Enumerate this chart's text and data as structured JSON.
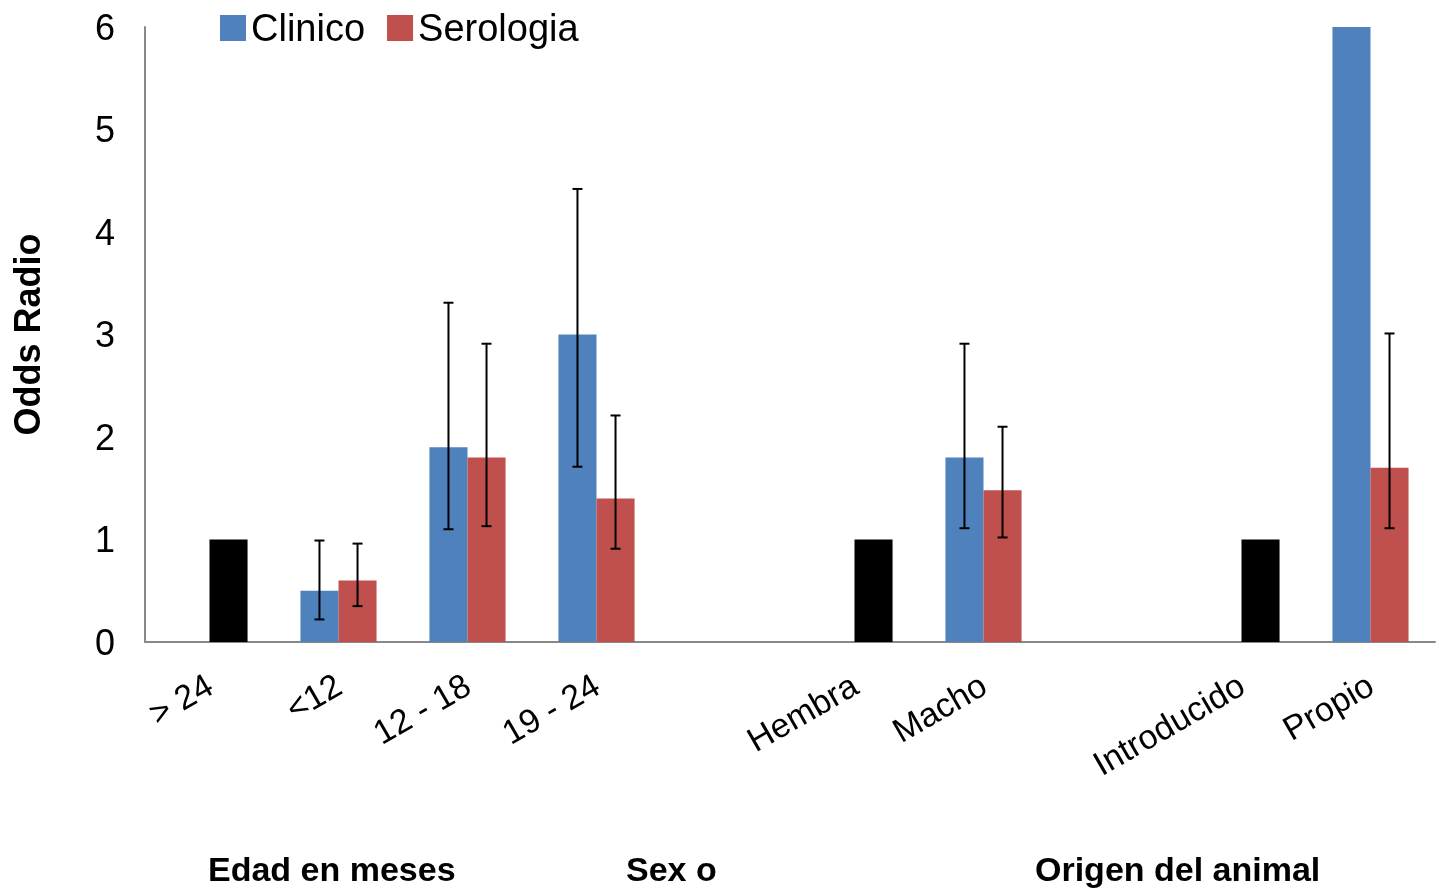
{
  "chart_data": {
    "type": "bar",
    "ylabel": "Odds Radio",
    "categories": [
      "> 24",
      "<12",
      "12 - 18",
      "19 - 24",
      null,
      "Hembra",
      "Macho",
      null,
      "Introducido",
      "Propio"
    ],
    "series": [
      {
        "name": "Clinico",
        "color": "#4f81bd",
        "values": [
          null,
          0.5,
          1.9,
          3.0,
          null,
          null,
          1.8,
          null,
          null,
          6.0
        ],
        "errors": [
          null,
          [
            0.22,
            0.99
          ],
          [
            1.1,
            3.31
          ],
          [
            1.71,
            4.42
          ],
          null,
          null,
          [
            1.11,
            2.91
          ],
          null,
          null,
          null
        ]
      },
      {
        "name": "Serologia",
        "color": "#c0504d",
        "colors": [
          "#000000",
          "#c0504d",
          "#c0504d",
          "#c0504d",
          null,
          "#000000",
          "#c0504d",
          null,
          "#000000",
          "#c0504d"
        ],
        "values": [
          1,
          0.6,
          1.8,
          1.4,
          null,
          1,
          1.48,
          null,
          1,
          1.7
        ],
        "errors": [
          null,
          [
            0.35,
            0.96
          ],
          [
            1.13,
            2.91
          ],
          [
            0.91,
            2.21
          ],
          null,
          null,
          [
            1.02,
            2.1
          ],
          null,
          null,
          [
            1.11,
            3.01
          ]
        ]
      }
    ],
    "ylim": [
      0,
      6
    ],
    "yticks": [
      0,
      1,
      2,
      3,
      4,
      5,
      6
    ],
    "grid": false,
    "legend": "top left",
    "annotations": [
      "Edad en meses",
      "Sex o",
      "Origen del animal"
    ]
  }
}
